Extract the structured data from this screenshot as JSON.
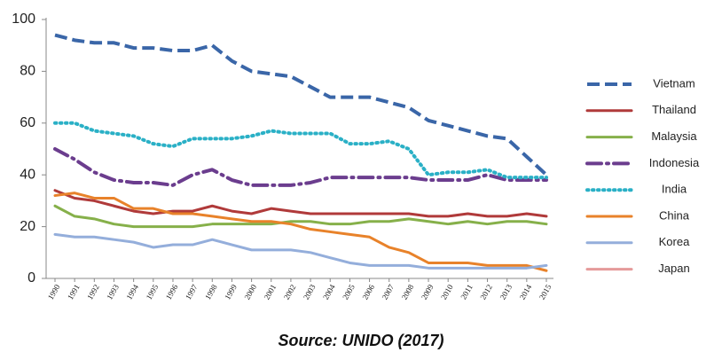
{
  "chart_data": {
    "type": "line",
    "categories": [
      "1990",
      "1991",
      "1992",
      "1993",
      "1994",
      "1995",
      "1996",
      "1997",
      "1998",
      "1999",
      "2000",
      "2001",
      "2002",
      "2003",
      "2004",
      "2005",
      "2006",
      "2007",
      "2008",
      "2009",
      "2010",
      "2011",
      "2012",
      "2013",
      "2014",
      "2015"
    ],
    "ylim": [
      0,
      100
    ],
    "yticks": [
      0,
      20,
      40,
      60,
      80,
      100
    ],
    "grid": false,
    "legend": "right",
    "series": [
      {
        "name": "Vietnam",
        "color": "#3a66a8",
        "dash": "dashed",
        "values": [
          94,
          92,
          91,
          91,
          89,
          89,
          88,
          88,
          90,
          84,
          80,
          79,
          78,
          74,
          70,
          70,
          70,
          68,
          66,
          61,
          59,
          57,
          55,
          54,
          47,
          40
        ]
      },
      {
        "name": "Thailand",
        "color": "#b03a3a",
        "dash": "solid",
        "values": [
          34,
          31,
          30,
          28,
          26,
          25,
          26,
          26,
          28,
          26,
          25,
          27,
          26,
          25,
          25,
          25,
          25,
          25,
          25,
          24,
          24,
          25,
          24,
          24,
          25,
          24
        ]
      },
      {
        "name": "Malaysia",
        "color": "#86b04a",
        "dash": "solid",
        "values": [
          28,
          24,
          23,
          21,
          20,
          20,
          20,
          20,
          21,
          21,
          21,
          21,
          22,
          22,
          21,
          21,
          22,
          22,
          23,
          22,
          21,
          22,
          21,
          22,
          22,
          21
        ]
      },
      {
        "name": "Indonesia",
        "color": "#6b3d8e",
        "dash": "dashdot",
        "values": [
          50,
          46,
          41,
          38,
          37,
          37,
          36,
          40,
          42,
          38,
          36,
          36,
          36,
          37,
          39,
          39,
          39,
          39,
          39,
          38,
          38,
          38,
          40,
          38,
          38,
          38
        ]
      },
      {
        "name": "India",
        "color": "#2ab0c6",
        "dash": "dotted",
        "values": [
          60,
          60,
          57,
          56,
          55,
          52,
          51,
          54,
          54,
          54,
          55,
          57,
          56,
          56,
          56,
          52,
          52,
          53,
          50,
          40,
          41,
          41,
          42,
          39,
          39,
          39
        ]
      },
      {
        "name": "China",
        "color": "#e8822a",
        "dash": "solid",
        "values": [
          32,
          33,
          31,
          31,
          27,
          27,
          25,
          25,
          24,
          23,
          22,
          22,
          21,
          19,
          18,
          17,
          16,
          12,
          10,
          6,
          6,
          6,
          5,
          5,
          5,
          3
        ]
      },
      {
        "name": "Korea",
        "color": "#94aedb",
        "dash": "solid",
        "values": [
          17,
          16,
          16,
          15,
          14,
          12,
          13,
          13,
          15,
          13,
          11,
          11,
          11,
          10,
          8,
          6,
          5,
          5,
          5,
          4,
          4,
          4,
          4,
          4,
          4,
          5
        ]
      },
      {
        "name": "Japan",
        "color": "#e59a9a",
        "dash": "solid",
        "values": [
          null,
          null,
          null,
          null,
          null,
          null,
          null,
          null,
          null,
          null,
          null,
          null,
          null,
          null,
          null,
          null,
          null,
          null,
          null,
          null,
          null,
          null,
          null,
          null,
          null,
          null
        ]
      }
    ]
  },
  "caption": "Source: UNIDO (2017)"
}
